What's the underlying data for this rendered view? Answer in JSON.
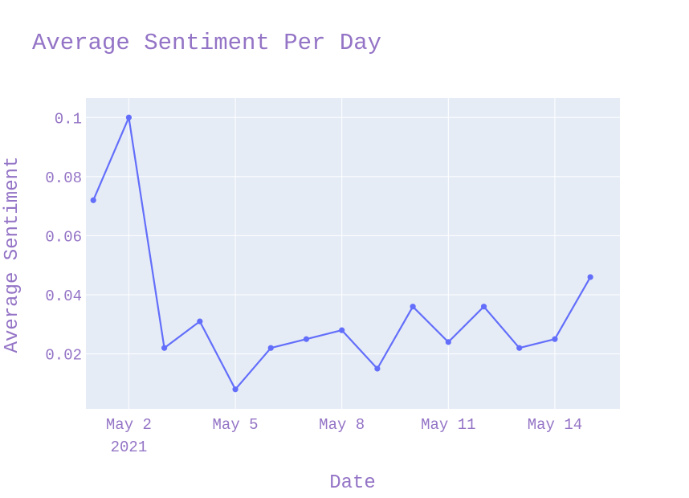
{
  "chart_data": {
    "type": "line",
    "title": "Average Sentiment Per Day",
    "xlabel": "Date",
    "ylabel": "Average Sentiment",
    "x": [
      "2021-05-01",
      "2021-05-02",
      "2021-05-03",
      "2021-05-04",
      "2021-05-05",
      "2021-05-06",
      "2021-05-07",
      "2021-05-08",
      "2021-05-09",
      "2021-05-10",
      "2021-05-11",
      "2021-05-12",
      "2021-05-13",
      "2021-05-14",
      "2021-05-15"
    ],
    "y": [
      0.072,
      0.1,
      0.022,
      0.031,
      0.008,
      0.022,
      0.025,
      0.028,
      0.015,
      0.036,
      0.024,
      0.036,
      0.022,
      0.025,
      0.046
    ],
    "xlim": [
      "2021-04-30T19:00:00",
      "2021-05-15T20:00:00"
    ],
    "ylim": [
      0.0014,
      0.1066
    ],
    "xticks": [
      {
        "date": "2021-05-02",
        "label": "May 2",
        "sublabel": "2021"
      },
      {
        "date": "2021-05-05",
        "label": "May 5",
        "sublabel": ""
      },
      {
        "date": "2021-05-08",
        "label": "May 8",
        "sublabel": ""
      },
      {
        "date": "2021-05-11",
        "label": "May 11",
        "sublabel": ""
      },
      {
        "date": "2021-05-14",
        "label": "May 14",
        "sublabel": ""
      }
    ],
    "yticks": [
      {
        "value": 0.02,
        "label": "0.02"
      },
      {
        "value": 0.04,
        "label": "0.04"
      },
      {
        "value": 0.06,
        "label": "0.06"
      },
      {
        "value": 0.08,
        "label": "0.08"
      },
      {
        "value": 0.1,
        "label": "0.1"
      }
    ],
    "grid": true,
    "colors": {
      "line": "#636efa",
      "plot_bg": "#e5ecf6",
      "grid": "#ffffff",
      "text": "#9474c6"
    }
  }
}
